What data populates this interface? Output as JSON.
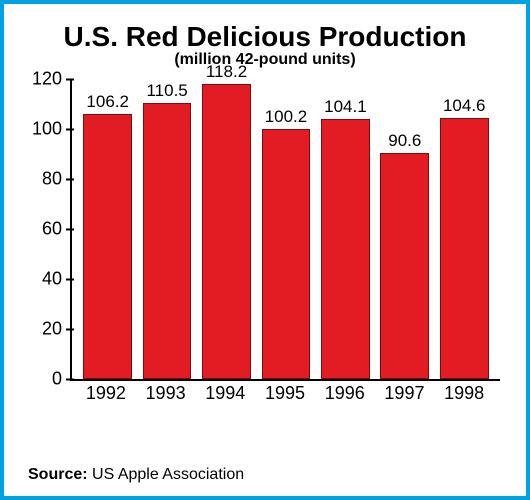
{
  "chart": {
    "type": "bar",
    "title": "U.S. Red Delicious Production",
    "title_fontsize": 28,
    "subtitle": "(million 42-pound units)",
    "subtitle_fontsize": 16,
    "categories": [
      "1992",
      "1993",
      "1994",
      "1995",
      "1996",
      "1997",
      "1998"
    ],
    "values": [
      106.2,
      110.5,
      118.2,
      100.2,
      104.1,
      90.6,
      104.6
    ],
    "value_labels": [
      "106.2",
      "110.5",
      "118.2",
      "100.2",
      "104.1",
      "90.6",
      "104.6"
    ],
    "bar_color": "#e31b23",
    "bar_border_color": "#7a0d10",
    "bar_width_pct": 82,
    "ylim": [
      0,
      120
    ],
    "yticks": [
      0,
      20,
      40,
      60,
      80,
      100,
      120
    ],
    "ytick_labels": [
      "0",
      "20",
      "40",
      "60",
      "80",
      "100",
      "120"
    ],
    "axis_color": "#000000",
    "text_color": "#000000",
    "background_color": "#ffffff",
    "frame_border_color": "#00a3e0",
    "label_fontsize": 18,
    "value_label_fontsize": 17
  },
  "source": {
    "label": "Source:",
    "text": "US Apple Association"
  }
}
